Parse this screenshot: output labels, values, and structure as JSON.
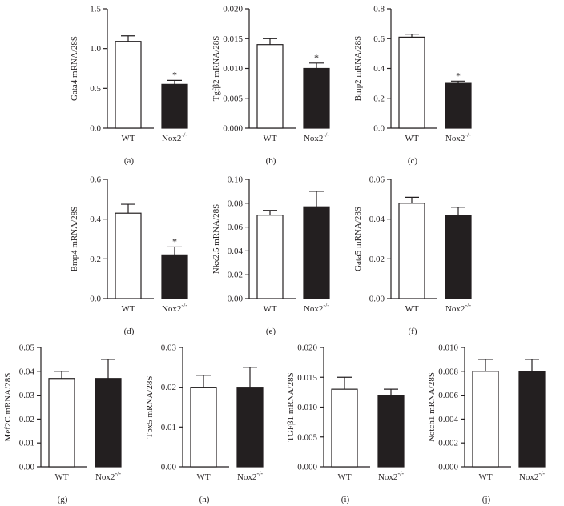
{
  "chart_data": [
    {
      "type": "bar",
      "panel_label": "(a)",
      "ylabel": "Gata4 mRNA/28S",
      "categories": [
        "WT",
        "Nox2"
      ],
      "category_superscripts": [
        "",
        "-/-"
      ],
      "values": [
        1.09,
        0.55
      ],
      "errors": [
        0.07,
        0.05
      ],
      "significance": [
        "",
        "*"
      ],
      "ylim": [
        0,
        1.5
      ],
      "yticks": [
        0.0,
        0.5,
        1.0,
        1.5
      ],
      "ytick_labels": [
        "0.0",
        "0.5",
        "1.0",
        "1.5"
      ],
      "bar_colors": [
        "#ffffff",
        "#231f20"
      ]
    },
    {
      "type": "bar",
      "panel_label": "(b)",
      "ylabel": "Tgfβ2 mRNA/28S",
      "categories": [
        "WT",
        "Nox2"
      ],
      "category_superscripts": [
        "",
        "-/-"
      ],
      "values": [
        0.014,
        0.01
      ],
      "errors": [
        0.001,
        0.0009
      ],
      "significance": [
        "",
        "*"
      ],
      "ylim": [
        0,
        0.02
      ],
      "yticks": [
        0.0,
        0.005,
        0.01,
        0.015,
        0.02
      ],
      "ytick_labels": [
        "0.000",
        "0.005",
        "0.010",
        "0.015",
        "0.020"
      ],
      "bar_colors": [
        "#ffffff",
        "#231f20"
      ]
    },
    {
      "type": "bar",
      "panel_label": "(c)",
      "ylabel": "Bmp2 mRNA/28S",
      "categories": [
        "WT",
        "Nox2"
      ],
      "category_superscripts": [
        "",
        "-/-"
      ],
      "values": [
        0.61,
        0.3
      ],
      "errors": [
        0.02,
        0.015
      ],
      "significance": [
        "",
        "*"
      ],
      "ylim": [
        0,
        0.8
      ],
      "yticks": [
        0.0,
        0.2,
        0.4,
        0.6,
        0.8
      ],
      "ytick_labels": [
        "0.0",
        "0.2",
        "0.4",
        "0.6",
        "0.8"
      ],
      "bar_colors": [
        "#ffffff",
        "#231f20"
      ]
    },
    {
      "type": "bar",
      "panel_label": "(d)",
      "ylabel": "Bmp4 mRNA/28S",
      "categories": [
        "WT",
        "Nox2"
      ],
      "category_superscripts": [
        "",
        "-/-"
      ],
      "values": [
        0.43,
        0.22
      ],
      "errors": [
        0.045,
        0.04
      ],
      "significance": [
        "",
        "*"
      ],
      "ylim": [
        0,
        0.6
      ],
      "yticks": [
        0.0,
        0.2,
        0.4,
        0.6
      ],
      "ytick_labels": [
        "0.0",
        "0.2",
        "0.4",
        "0.6"
      ],
      "bar_colors": [
        "#ffffff",
        "#231f20"
      ]
    },
    {
      "type": "bar",
      "panel_label": "(e)",
      "ylabel": "Nkx2.5 mRNA/28S",
      "categories": [
        "WT",
        "Nox2"
      ],
      "category_superscripts": [
        "",
        "-/-"
      ],
      "values": [
        0.07,
        0.077
      ],
      "errors": [
        0.004,
        0.013
      ],
      "significance": [
        "",
        ""
      ],
      "ylim": [
        0,
        0.1
      ],
      "yticks": [
        0.0,
        0.02,
        0.04,
        0.06,
        0.08,
        0.1
      ],
      "ytick_labels": [
        "0.00",
        "0.02",
        "0.04",
        "0.06",
        "0.08",
        "0.10"
      ],
      "bar_colors": [
        "#ffffff",
        "#231f20"
      ]
    },
    {
      "type": "bar",
      "panel_label": "(f)",
      "ylabel": "Gata5 mRNA/28S",
      "categories": [
        "WT",
        "Nox2"
      ],
      "category_superscripts": [
        "",
        "-/-"
      ],
      "values": [
        0.048,
        0.042
      ],
      "errors": [
        0.003,
        0.004
      ],
      "significance": [
        "",
        ""
      ],
      "ylim": [
        0,
        0.06
      ],
      "yticks": [
        0.0,
        0.02,
        0.04,
        0.06
      ],
      "ytick_labels": [
        "0.00",
        "0.02",
        "0.04",
        "0.06"
      ],
      "bar_colors": [
        "#ffffff",
        "#231f20"
      ]
    },
    {
      "type": "bar",
      "panel_label": "(g)",
      "ylabel": "Mef2C mRNA/28S",
      "categories": [
        "WT",
        "Nox2"
      ],
      "category_superscripts": [
        "",
        "-/-"
      ],
      "values": [
        0.037,
        0.037
      ],
      "errors": [
        0.003,
        0.008
      ],
      "significance": [
        "",
        ""
      ],
      "ylim": [
        0,
        0.05
      ],
      "yticks": [
        0.0,
        0.01,
        0.02,
        0.03,
        0.04,
        0.05
      ],
      "ytick_labels": [
        "0.00",
        "0.01",
        "0.02",
        "0.03",
        "0.04",
        "0.05"
      ],
      "bar_colors": [
        "#ffffff",
        "#231f20"
      ]
    },
    {
      "type": "bar",
      "panel_label": "(h)",
      "ylabel": "Tbx5 mRNA/28S",
      "categories": [
        "WT",
        "Nox2"
      ],
      "category_superscripts": [
        "",
        "-/-"
      ],
      "values": [
        0.02,
        0.02
      ],
      "errors": [
        0.003,
        0.005
      ],
      "significance": [
        "",
        ""
      ],
      "ylim": [
        0,
        0.03
      ],
      "yticks": [
        0.0,
        0.01,
        0.02,
        0.03
      ],
      "ytick_labels": [
        "0.00",
        "0.01",
        "0.02",
        "0.03"
      ],
      "bar_colors": [
        "#ffffff",
        "#231f20"
      ]
    },
    {
      "type": "bar",
      "panel_label": "(i)",
      "ylabel": "TGFβ1 mRNA/28S",
      "categories": [
        "WT",
        "Nox2"
      ],
      "category_superscripts": [
        "",
        "-/-"
      ],
      "values": [
        0.013,
        0.012
      ],
      "errors": [
        0.002,
        0.001
      ],
      "significance": [
        "",
        ""
      ],
      "ylim": [
        0,
        0.02
      ],
      "yticks": [
        0.0,
        0.005,
        0.01,
        0.015,
        0.02
      ],
      "ytick_labels": [
        "0.000",
        "0.005",
        "0.010",
        "0.015",
        "0.020"
      ],
      "bar_colors": [
        "#ffffff",
        "#231f20"
      ]
    },
    {
      "type": "bar",
      "panel_label": "(j)",
      "ylabel": "Notch1 mRNA/28S",
      "categories": [
        "WT",
        "Nox2"
      ],
      "category_superscripts": [
        "",
        "-/-"
      ],
      "values": [
        0.008,
        0.008
      ],
      "errors": [
        0.001,
        0.001
      ],
      "significance": [
        "",
        ""
      ],
      "ylim": [
        0,
        0.01
      ],
      "yticks": [
        0.0,
        0.002,
        0.004,
        0.006,
        0.008,
        0.01
      ],
      "ytick_labels": [
        "0.000",
        "0.002",
        "0.004",
        "0.006",
        "0.008",
        "0.010"
      ],
      "bar_colors": [
        "#ffffff",
        "#231f20"
      ]
    }
  ]
}
